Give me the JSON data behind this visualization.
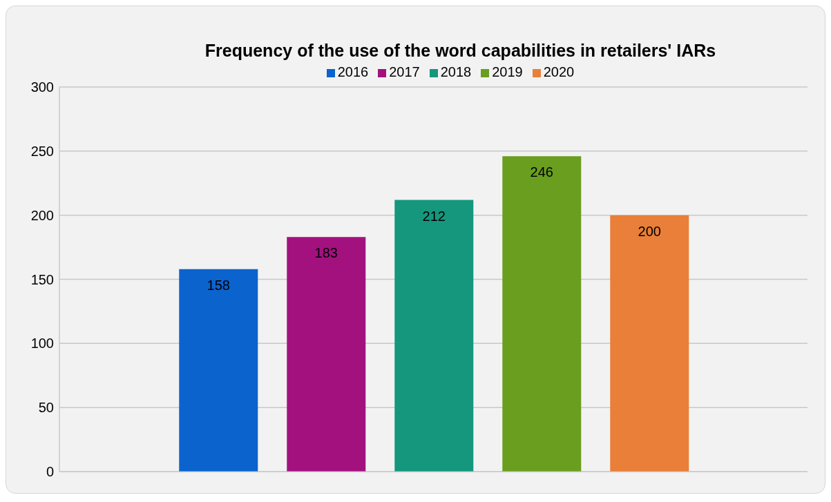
{
  "chart_data": {
    "type": "bar",
    "title": "Frequency of the use of the word capabilities in retailers' IARs",
    "categories": [
      null
    ],
    "series": [
      {
        "name": "2016",
        "color": "#0b63ce",
        "values": [
          158
        ]
      },
      {
        "name": "2017",
        "color": "#a3117f",
        "values": [
          183
        ]
      },
      {
        "name": "2018",
        "color": "#14977d",
        "values": [
          212
        ]
      },
      {
        "name": "2019",
        "color": "#6a9e1f",
        "values": [
          246
        ]
      },
      {
        "name": "2020",
        "color": "#e97f38",
        "values": [
          200
        ]
      }
    ],
    "ylim": [
      0,
      300
    ],
    "yticks": [
      0,
      50,
      100,
      150,
      200,
      250,
      300
    ],
    "grid": "y",
    "legend": "top",
    "data_labels": true
  }
}
